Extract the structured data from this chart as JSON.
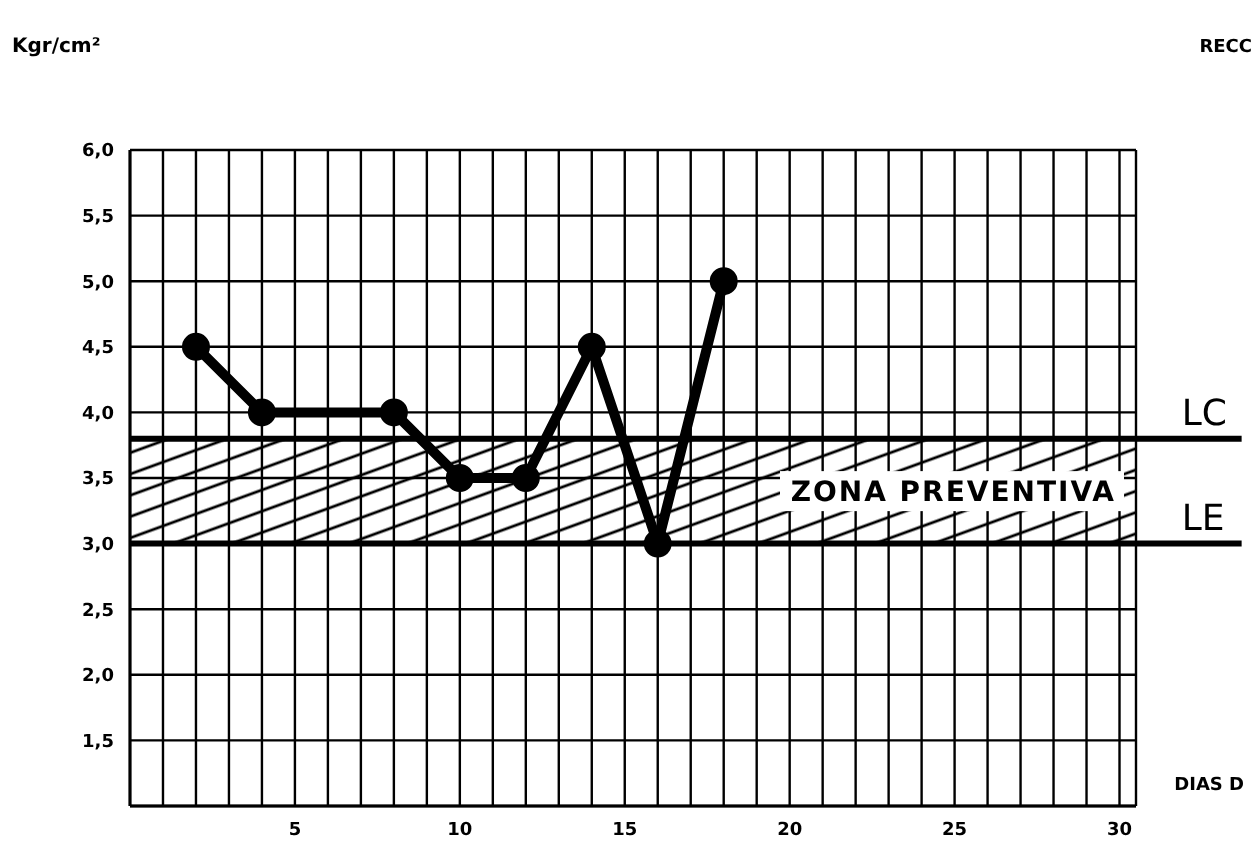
{
  "chart_data": {
    "type": "line",
    "ylabel": "Kgr/cm²",
    "xlabel": "DIAS D",
    "annotations": [
      "RECC"
    ],
    "x": [
      2,
      4,
      8,
      10,
      12,
      14,
      16,
      18
    ],
    "series": [
      {
        "color": "#000000",
        "values": [
          4.5,
          4.0,
          4.0,
          3.5,
          3.5,
          4.5,
          3.0,
          5.0
        ]
      }
    ],
    "xlim": [
      0,
      30.5
    ],
    "xticks": [
      {
        "value": 1,
        "label": null
      },
      {
        "value": 2,
        "label": null
      },
      {
        "value": 3,
        "label": null
      },
      {
        "value": 4,
        "label": null
      },
      5,
      {
        "value": 6,
        "label": null
      },
      {
        "value": 7,
        "label": null
      },
      {
        "value": 8,
        "label": null
      },
      {
        "value": 9,
        "label": null
      },
      10,
      {
        "value": 11,
        "label": null
      },
      {
        "value": 12,
        "label": null
      },
      {
        "value": 13,
        "label": null
      },
      {
        "value": 14,
        "label": null
      },
      15,
      {
        "value": 16,
        "label": null
      },
      {
        "value": 17,
        "label": null
      },
      {
        "value": 18,
        "label": null
      },
      {
        "value": 19,
        "label": null
      },
      20,
      {
        "value": 21,
        "label": null
      },
      {
        "value": 22,
        "label": null
      },
      {
        "value": 23,
        "label": null
      },
      {
        "value": 24,
        "label": null
      },
      25,
      {
        "value": 26,
        "label": null
      },
      {
        "value": 27,
        "label": null
      },
      {
        "value": 28,
        "label": null
      },
      {
        "value": 29,
        "label": null
      },
      30
    ],
    "ylim": [
      1,
      6
    ],
    "yticks": [
      {
        "value": 1.5,
        "label": "1,5"
      },
      {
        "value": 2,
        "label": "2,0"
      },
      {
        "value": 2.5,
        "label": "2,5"
      },
      {
        "value": 3,
        "label": "3,0"
      },
      {
        "value": 3.5,
        "label": "3,5"
      },
      {
        "value": 4,
        "label": "4,0"
      },
      {
        "value": 4.5,
        "label": "4,5"
      },
      {
        "value": 5,
        "label": "5,0"
      },
      {
        "value": 5.5,
        "label": "5,5"
      },
      {
        "value": 6,
        "label": "6,0"
      }
    ],
    "ref_lines": [
      {
        "axis": "y",
        "value": 3.8,
        "label": "LC",
        "color": "#000000"
      },
      {
        "axis": "y",
        "value": 3,
        "label": "LE",
        "color": "#000000"
      }
    ],
    "bands": [
      {
        "axis": "y",
        "from": 3,
        "to": 3.8,
        "label": "ZONA PREVENTIVA",
        "color": "#000000"
      }
    ],
    "grid": true,
    "marker": "circle",
    "line_style": "solid"
  }
}
